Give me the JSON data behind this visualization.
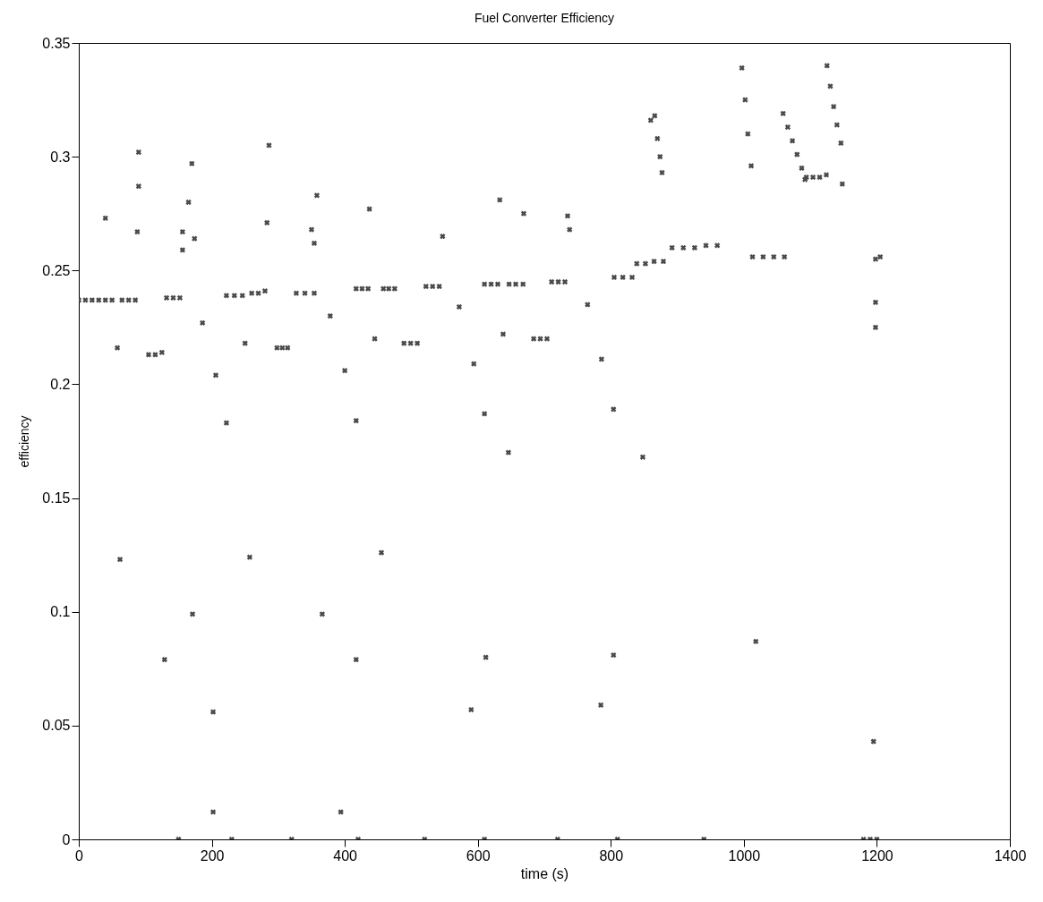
{
  "chart_data": {
    "type": "scatter",
    "title": "Fuel Converter Efficiency",
    "xlabel": "time (s)",
    "ylabel": "efficiency",
    "xlim": [
      0,
      1400
    ],
    "xticks": [
      0,
      200,
      400,
      600,
      800,
      1000,
      1200,
      1400
    ],
    "ylim": [
      0,
      0.35
    ],
    "yticks": [
      0,
      0.05,
      0.1,
      0.15,
      0.2,
      0.25,
      0.3,
      0.35
    ],
    "grid": false,
    "marker": "cross",
    "series": [
      {
        "color": "#4a4a4a",
        "x": [
          0,
          10,
          20,
          30,
          40,
          50,
          65,
          75,
          85,
          58,
          105,
          115,
          125,
          132,
          142,
          152,
          186,
          206,
          222,
          234,
          246,
          260,
          270,
          280,
          250,
          298,
          306,
          314,
          327,
          340,
          354,
          378,
          400,
          417,
          426,
          435,
          445,
          458,
          466,
          475,
          489,
          499,
          509,
          522,
          532,
          542,
          572,
          594,
          610,
          620,
          630,
          638,
          647,
          657,
          668,
          684,
          694,
          704,
          711,
          721,
          731,
          765,
          786,
          805,
          818,
          832,
          839,
          852,
          865,
          879,
          892,
          909,
          926,
          943,
          960,
          1013,
          1029,
          1045,
          1061,
          1059,
          1066,
          1073,
          1080,
          1087,
          1092,
          1094,
          1104,
          1114,
          1124,
          1125,
          1130,
          1135,
          1140,
          1146,
          1148,
          997,
          1002,
          1006,
          1011,
          866,
          870,
          874,
          877,
          1198,
          1205,
          1198,
          1198,
          1195,
          150,
          230,
          320,
          420,
          520,
          610,
          720,
          810,
          940,
          1180,
          1190,
          1200,
          40,
          90,
          90,
          88,
          156,
          174,
          156,
          170,
          165,
          283,
          286,
          350,
          354,
          358,
          437,
          669,
          735,
          738,
          860,
          633,
          547,
          202,
          202,
          394,
          590,
          171,
          366,
          62,
          257,
          455,
          646,
          222,
          417,
          610,
          129,
          417,
          612,
          804,
          1018,
          804,
          848,
          785
        ],
        "values": [
          0.237,
          0.237,
          0.237,
          0.237,
          0.237,
          0.237,
          0.237,
          0.237,
          0.237,
          0.216,
          0.213,
          0.213,
          0.214,
          0.238,
          0.238,
          0.238,
          0.227,
          0.204,
          0.239,
          0.239,
          0.239,
          0.24,
          0.24,
          0.241,
          0.218,
          0.216,
          0.216,
          0.216,
          0.24,
          0.24,
          0.24,
          0.23,
          0.206,
          0.242,
          0.242,
          0.242,
          0.22,
          0.242,
          0.242,
          0.242,
          0.218,
          0.218,
          0.218,
          0.243,
          0.243,
          0.243,
          0.234,
          0.209,
          0.244,
          0.244,
          0.244,
          0.222,
          0.244,
          0.244,
          0.244,
          0.22,
          0.22,
          0.22,
          0.245,
          0.245,
          0.245,
          0.235,
          0.211,
          0.247,
          0.247,
          0.247,
          0.253,
          0.253,
          0.254,
          0.254,
          0.26,
          0.26,
          0.26,
          0.261,
          0.261,
          0.256,
          0.256,
          0.256,
          0.256,
          0.319,
          0.313,
          0.307,
          0.301,
          0.295,
          0.29,
          0.291,
          0.291,
          0.291,
          0.292,
          0.34,
          0.331,
          0.322,
          0.314,
          0.306,
          0.288,
          0.339,
          0.325,
          0.31,
          0.296,
          0.318,
          0.308,
          0.3,
          0.293,
          0.255,
          0.256,
          0.236,
          0.225,
          0.043,
          0,
          0,
          0,
          0,
          0,
          0,
          0,
          0,
          0,
          0,
          0,
          0,
          0.273,
          0.302,
          0.287,
          0.267,
          0.267,
          0.264,
          0.259,
          0.297,
          0.28,
          0.271,
          0.305,
          0.268,
          0.262,
          0.283,
          0.277,
          0.275,
          0.274,
          0.268,
          0.316,
          0.281,
          0.265,
          0.056,
          0.012,
          0.012,
          0.057,
          0.099,
          0.099,
          0.123,
          0.124,
          0.126,
          0.17,
          0.183,
          0.184,
          0.187,
          0.079,
          0.079,
          0.08,
          0.081,
          0.087,
          0.189,
          0.168,
          0.059
        ]
      }
    ]
  }
}
